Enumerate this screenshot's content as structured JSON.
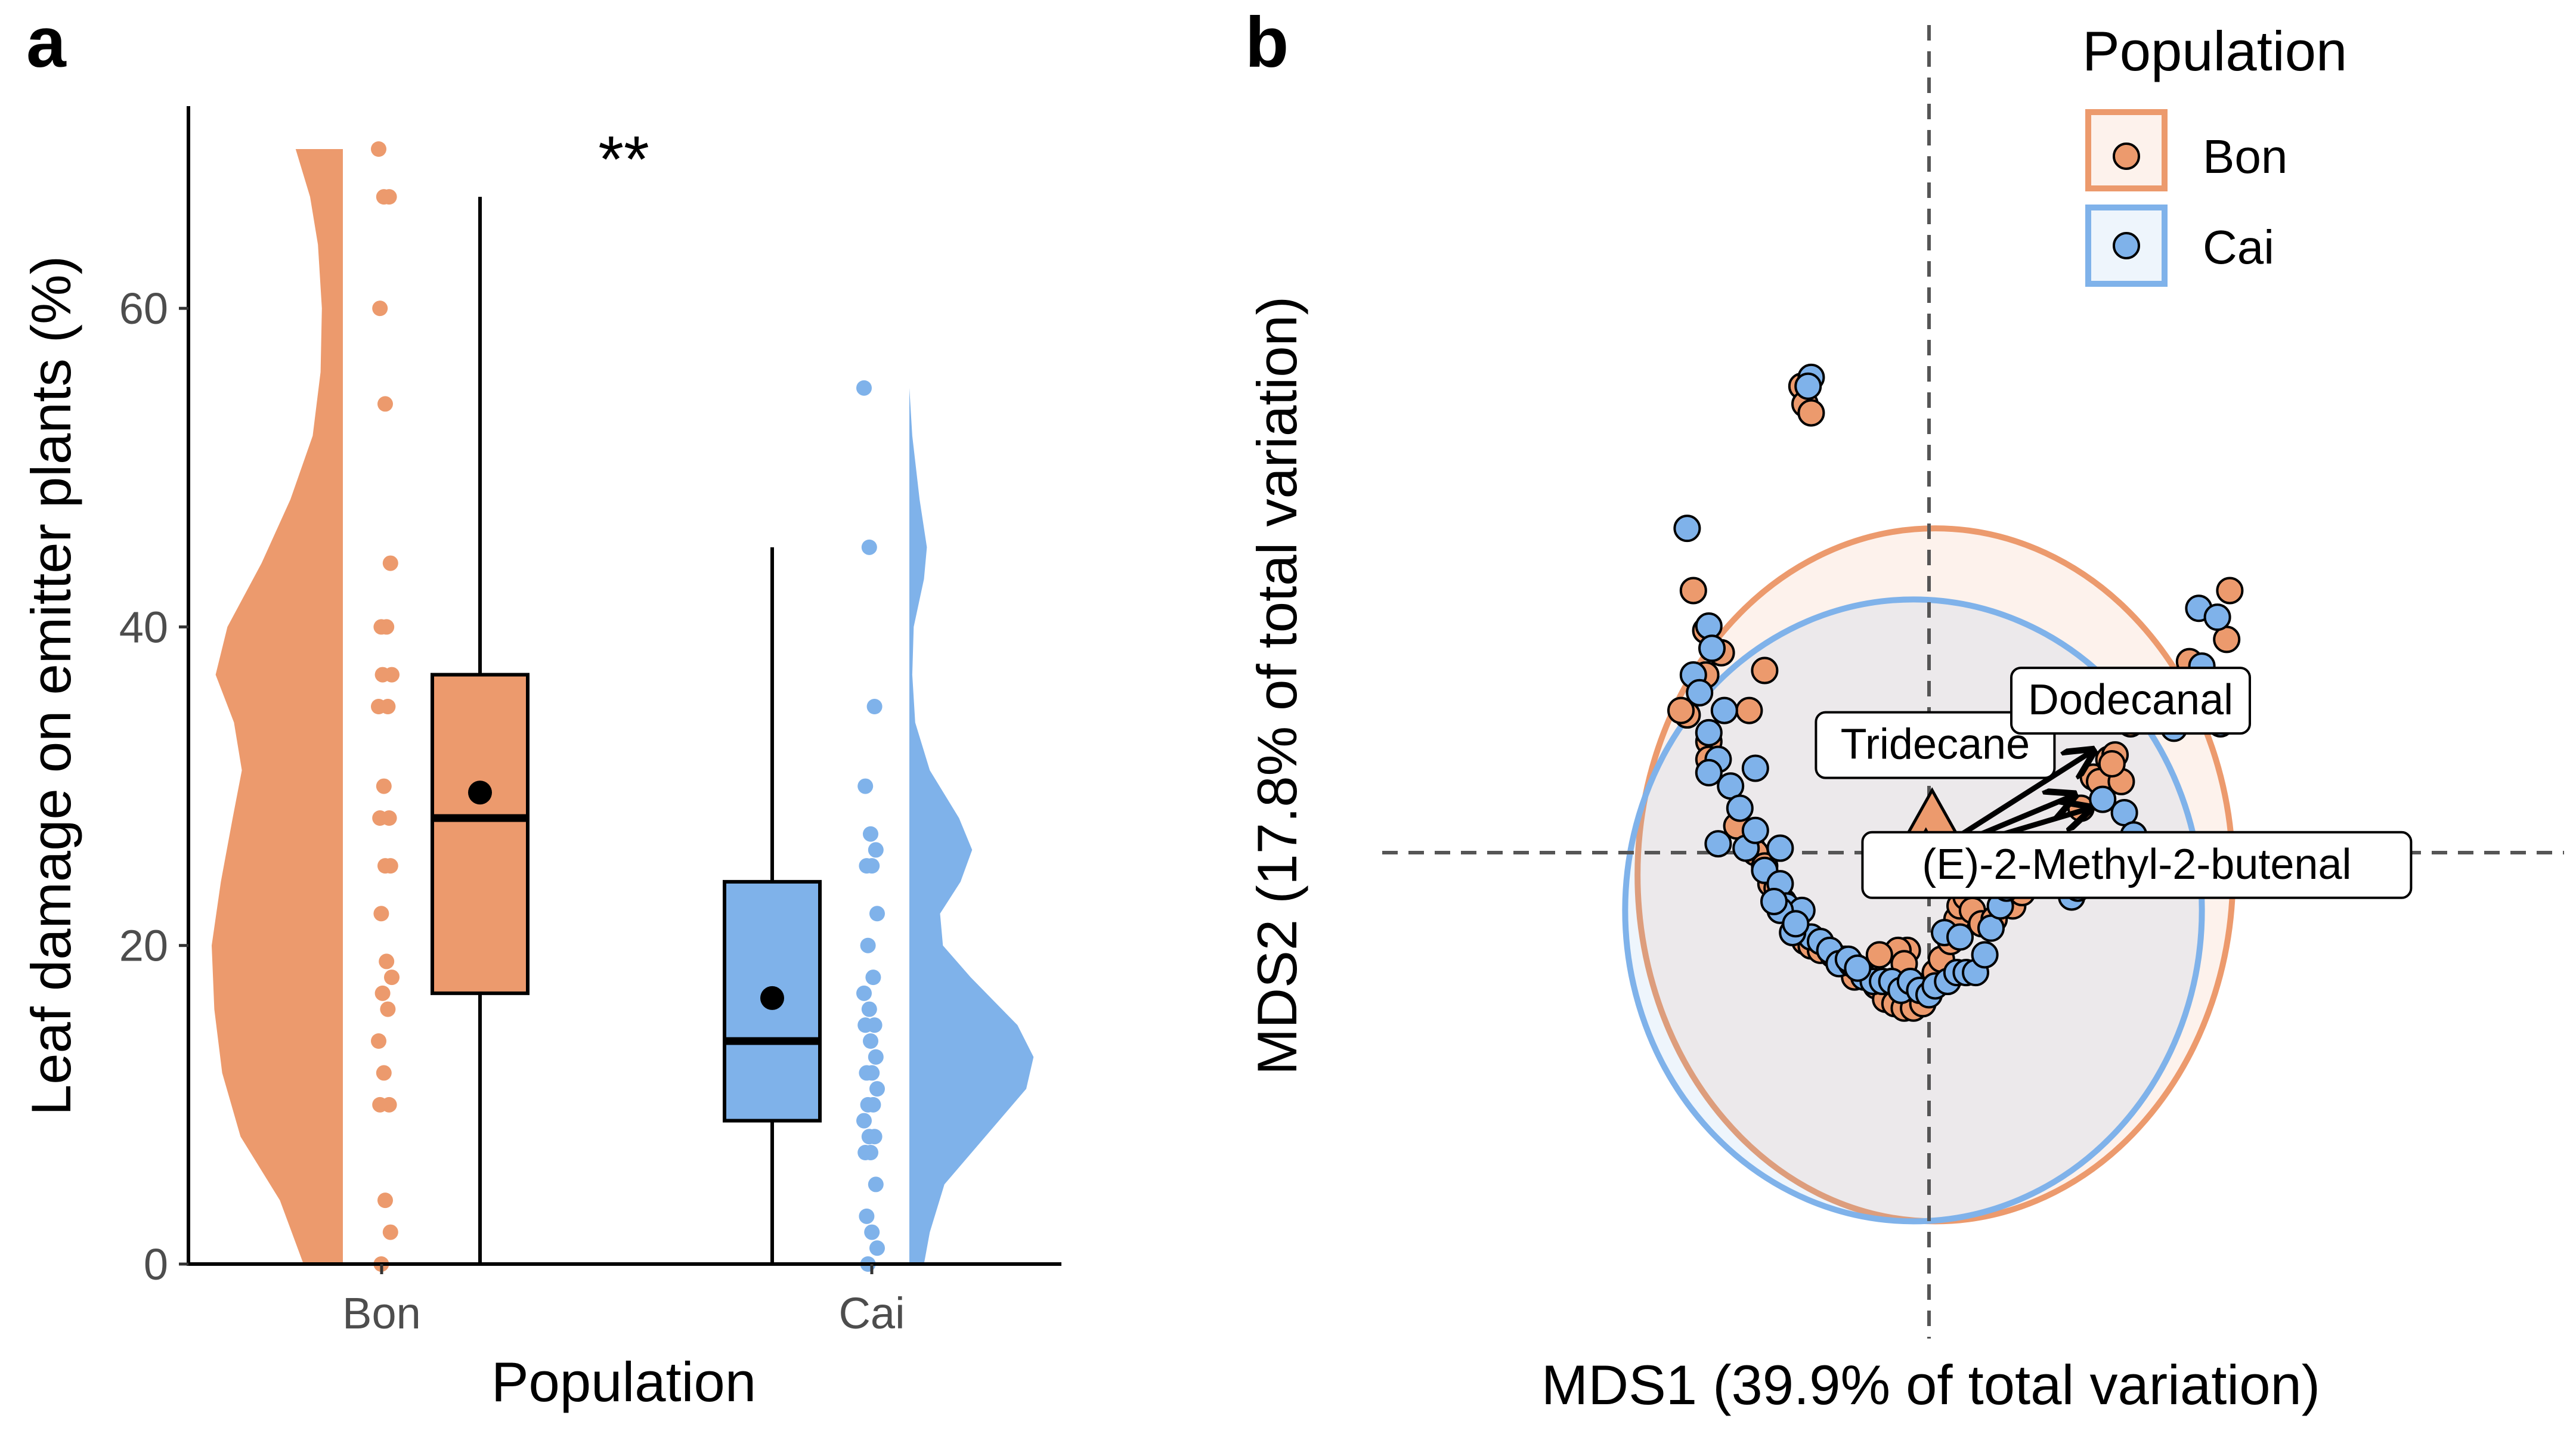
{
  "colors": {
    "bon": "#EC9A6D",
    "cai": "#7FB2EA",
    "axis": "#000000",
    "guide": "#555555"
  },
  "panels": {
    "a": "a",
    "b": "b"
  },
  "chart_data": [
    {
      "type": "raincloud",
      "xlabel": "Population",
      "ylabel": "Leaf damage on emitter plants (%)",
      "categories": [
        "Bon",
        "Cai"
      ],
      "ylim": [
        0,
        70
      ],
      "yticks": [
        0,
        20,
        40,
        60
      ],
      "significance": "**",
      "series": [
        {
          "name": "Bon",
          "color": "#EC9A6D",
          "points": [
            70,
            67,
            67,
            60,
            54,
            44,
            40,
            40,
            37,
            37,
            35,
            35,
            30,
            28,
            28,
            25,
            25,
            22,
            19,
            18,
            17,
            16,
            14,
            12,
            10,
            10,
            4,
            2,
            0
          ],
          "box": {
            "min": 0,
            "q1": 17,
            "median": 28,
            "q3": 37,
            "max": 67,
            "mean": 29.6
          },
          "density": [
            [
              0,
              0.3
            ],
            [
              4,
              0.48
            ],
            [
              8,
              0.78
            ],
            [
              12,
              0.92
            ],
            [
              16,
              0.98
            ],
            [
              20,
              1.0
            ],
            [
              24,
              0.93
            ],
            [
              28,
              0.84
            ],
            [
              31,
              0.77
            ],
            [
              34,
              0.83
            ],
            [
              37,
              0.97
            ],
            [
              40,
              0.88
            ],
            [
              44,
              0.62
            ],
            [
              48,
              0.4
            ],
            [
              52,
              0.23
            ],
            [
              56,
              0.17
            ],
            [
              60,
              0.16
            ],
            [
              64,
              0.19
            ],
            [
              67,
              0.25
            ],
            [
              70,
              0.36
            ]
          ]
        },
        {
          "name": "Cai",
          "color": "#7FB2EA",
          "points": [
            55,
            45,
            35,
            30,
            27,
            26,
            25,
            25,
            22,
            20,
            18,
            17,
            16,
            15,
            15,
            14,
            13,
            12,
            12,
            11,
            10,
            10,
            9,
            8,
            8,
            7,
            7,
            5,
            3,
            2,
            1,
            0
          ],
          "box": {
            "min": 0,
            "q1": 9,
            "median": 14,
            "q3": 24,
            "max": 45,
            "mean": 16.7
          },
          "density": [
            [
              0,
              0.1
            ],
            [
              2,
              0.14
            ],
            [
              5,
              0.24
            ],
            [
              8,
              0.52
            ],
            [
              11,
              0.8
            ],
            [
              13,
              0.85
            ],
            [
              15,
              0.74
            ],
            [
              18,
              0.42
            ],
            [
              20,
              0.23
            ],
            [
              22,
              0.21
            ],
            [
              24,
              0.35
            ],
            [
              26,
              0.43
            ],
            [
              28,
              0.34
            ],
            [
              31,
              0.14
            ],
            [
              34,
              0.04
            ],
            [
              37,
              0.02
            ],
            [
              40,
              0.03
            ],
            [
              43,
              0.1
            ],
            [
              45,
              0.12
            ],
            [
              48,
              0.07
            ],
            [
              52,
              0.02
            ],
            [
              55,
              0.0
            ]
          ]
        }
      ]
    },
    {
      "type": "scatter",
      "xlabel": "MDS1 (39.9% of total variation)",
      "ylabel": "MDS2 (17.8% of total variation)",
      "xlim": [
        -1.0,
        1.2
      ],
      "ylim": [
        -0.84,
        0.99
      ],
      "legend": {
        "title": "Population",
        "position": "top-right",
        "entries": [
          "Bon",
          "Cai"
        ]
      },
      "reference_lines": {
        "x": 0,
        "y": 0
      },
      "ellipses": [
        {
          "name": "Bon",
          "center": [
            0.02,
            -0.05
          ],
          "radii": [
            0.96,
            0.78
          ],
          "color": "#EC9A6D",
          "fill_opacity": 0.13
        },
        {
          "name": "Cai",
          "center": [
            -0.05,
            -0.13
          ],
          "radii": [
            0.93,
            0.7
          ],
          "color": "#7FB2EA",
          "fill_opacity": 0.13
        }
      ],
      "centroids": [
        {
          "name": "Bon",
          "x": 0.01,
          "y": 0.08
        },
        {
          "name": "Cai",
          "x": -0.01,
          "y": -0.01
        }
      ],
      "vectors": [
        {
          "label": "Tridecane",
          "to": [
            0.53,
            0.23
          ]
        },
        {
          "label": "Dodecanal",
          "to": [
            0.47,
            0.13
          ]
        },
        {
          "label": "(E)-2-Methyl-2-butenal",
          "to": [
            0.52,
            0.1
          ]
        }
      ],
      "vector_label_positions": {
        "Tridecane": [
          0.02,
          0.23
        ],
        "Dodecanal": [
          0.65,
          0.33
        ],
        "(E)-2-Methyl-2-butenal": [
          0.67,
          -0.04
        ]
      },
      "series": [
        {
          "name": "Bon",
          "color": "#EC9A6D",
          "points": [
            [
              -0.41,
              1.05
            ],
            [
              -0.4,
              1.01
            ],
            [
              -0.38,
              0.99
            ],
            [
              -0.72,
              0.5
            ],
            [
              -0.72,
              0.4
            ],
            [
              -0.53,
              0.41
            ],
            [
              -0.78,
              0.31
            ],
            [
              -0.58,
              0.32
            ],
            [
              -0.71,
              0.25
            ],
            [
              -0.71,
              0.21
            ],
            [
              -0.62,
              0.06
            ],
            [
              -0.57,
              0.01
            ],
            [
              -0.56,
              0.0
            ],
            [
              -0.53,
              -0.03
            ],
            [
              -0.51,
              -0.07
            ],
            [
              -0.49,
              -0.08
            ],
            [
              -0.47,
              -0.11
            ],
            [
              -0.45,
              -0.13
            ],
            [
              -0.43,
              -0.18
            ],
            [
              -0.4,
              -0.2
            ],
            [
              -0.38,
              -0.21
            ],
            [
              -0.35,
              -0.22
            ],
            [
              -0.31,
              -0.23
            ],
            [
              -0.27,
              -0.24
            ],
            [
              -0.24,
              -0.28
            ],
            [
              -0.17,
              -0.3
            ],
            [
              -0.14,
              -0.33
            ],
            [
              -0.11,
              -0.34
            ],
            [
              -0.08,
              -0.35
            ],
            [
              -0.05,
              -0.35
            ],
            [
              -0.02,
              -0.34
            ],
            [
              -0.01,
              -0.3
            ],
            [
              0.02,
              -0.27
            ],
            [
              0.04,
              -0.24
            ],
            [
              0.07,
              -0.2
            ],
            [
              0.09,
              -0.15
            ],
            [
              0.1,
              -0.12
            ],
            [
              0.12,
              -0.1
            ],
            [
              0.14,
              -0.13
            ],
            [
              0.17,
              -0.16
            ],
            [
              0.21,
              -0.15
            ],
            [
              0.24,
              -0.09
            ],
            [
              0.27,
              -0.12
            ],
            [
              0.3,
              -0.09
            ],
            [
              0.33,
              -0.06
            ],
            [
              0.37,
              -0.07
            ],
            [
              0.4,
              -0.01
            ],
            [
              0.43,
              -0.03
            ],
            [
              0.49,
              0.1
            ],
            [
              0.53,
              0.17
            ],
            [
              0.55,
              0.16
            ],
            [
              0.58,
              0.21
            ],
            [
              0.6,
              0.22
            ],
            [
              0.62,
              0.16
            ],
            [
              0.65,
              0.29
            ],
            [
              0.59,
              0.2
            ],
            [
              0.76,
              0.33
            ],
            [
              0.84,
              0.43
            ],
            [
              0.96,
              0.48
            ],
            [
              0.97,
              0.59
            ],
            [
              -0.07,
              -0.22
            ],
            [
              -0.1,
              -0.22
            ],
            [
              -0.16,
              -0.23
            ],
            [
              -0.8,
              0.32
            ],
            [
              -0.76,
              0.59
            ],
            [
              -0.67,
              0.45
            ],
            [
              -0.08,
              -0.25
            ]
          ]
        },
        {
          "name": "Cai",
          "color": "#7FB2EA",
          "points": [
            [
              -0.38,
              1.07
            ],
            [
              -0.39,
              1.05
            ],
            [
              -0.78,
              0.73
            ],
            [
              -0.71,
              0.51
            ],
            [
              -0.7,
              0.46
            ],
            [
              -0.76,
              0.4
            ],
            [
              -0.74,
              0.36
            ],
            [
              -0.66,
              0.32
            ],
            [
              -0.71,
              0.27
            ],
            [
              -0.68,
              0.21
            ],
            [
              -0.71,
              0.18
            ],
            [
              -0.56,
              0.19
            ],
            [
              -0.64,
              0.15
            ],
            [
              -0.61,
              0.1
            ],
            [
              -0.68,
              0.02
            ],
            [
              -0.59,
              0.01
            ],
            [
              -0.56,
              0.05
            ],
            [
              -0.48,
              0.01
            ],
            [
              -0.53,
              -0.04
            ],
            [
              -0.48,
              -0.07
            ],
            [
              -0.46,
              -0.12
            ],
            [
              -0.41,
              -0.13
            ],
            [
              -0.38,
              -0.19
            ],
            [
              -0.35,
              -0.2
            ],
            [
              -0.32,
              -0.22
            ],
            [
              -0.29,
              -0.25
            ],
            [
              -0.25,
              -0.25
            ],
            [
              -0.21,
              -0.28
            ],
            [
              -0.18,
              -0.29
            ],
            [
              -0.15,
              -0.29
            ],
            [
              -0.12,
              -0.29
            ],
            [
              -0.09,
              -0.31
            ],
            [
              -0.06,
              -0.29
            ],
            [
              -0.03,
              -0.31
            ],
            [
              0.0,
              -0.32
            ],
            [
              0.02,
              -0.3
            ],
            [
              0.06,
              -0.29
            ],
            [
              0.09,
              -0.27
            ],
            [
              0.12,
              -0.27
            ],
            [
              0.15,
              -0.27
            ],
            [
              0.18,
              -0.23
            ],
            [
              0.2,
              -0.17
            ],
            [
              0.23,
              -0.12
            ],
            [
              0.25,
              -0.08
            ],
            [
              0.28,
              -0.03
            ],
            [
              0.32,
              -0.01
            ],
            [
              0.36,
              -0.05
            ],
            [
              0.41,
              -0.02
            ],
            [
              0.46,
              -0.1
            ],
            [
              0.48,
              -0.08
            ],
            [
              0.56,
              0.12
            ],
            [
              0.63,
              0.09
            ],
            [
              0.66,
              0.04
            ],
            [
              0.79,
              0.28
            ],
            [
              0.81,
              0.3
            ],
            [
              0.88,
              0.42
            ],
            [
              0.87,
              0.55
            ],
            [
              0.93,
              0.53
            ],
            [
              0.94,
              0.29
            ],
            [
              0.94,
              0.31
            ],
            [
              -0.48,
              -0.13
            ],
            [
              -0.44,
              -0.18
            ],
            [
              -0.26,
              -0.24
            ],
            [
              -0.23,
              -0.26
            ],
            [
              -0.5,
              -0.11
            ],
            [
              -0.43,
              -0.16
            ],
            [
              0.05,
              -0.18
            ],
            [
              0.1,
              -0.19
            ]
          ]
        }
      ]
    }
  ]
}
